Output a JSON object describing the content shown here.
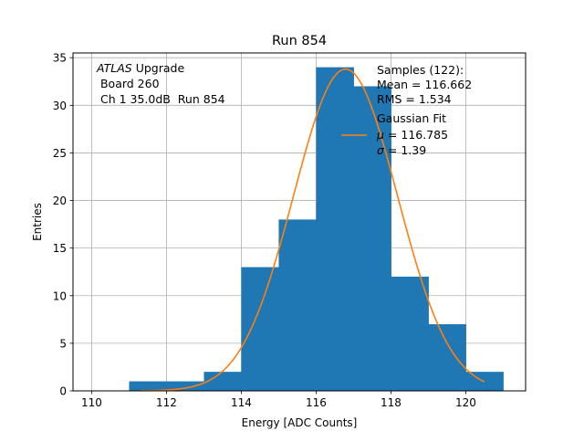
{
  "chart_data": {
    "type": "bar",
    "title": "Run 854",
    "xlabel": "Energy [ADC Counts]",
    "ylabel": "Entries",
    "xlim": [
      109.5,
      121.6
    ],
    "ylim": [
      0,
      35.5
    ],
    "grid": true,
    "xticks": [
      110,
      112,
      114,
      116,
      118,
      120
    ],
    "yticks": [
      0,
      5,
      10,
      15,
      20,
      25,
      30,
      35
    ],
    "bar_color": "#1f77b4",
    "fit_color": "#ff7f0e",
    "bins": [
      {
        "x0": 111,
        "x1": 112,
        "count": 1
      },
      {
        "x0": 112,
        "x1": 113,
        "count": 1
      },
      {
        "x0": 113,
        "x1": 114,
        "count": 2
      },
      {
        "x0": 114,
        "x1": 115,
        "count": 13
      },
      {
        "x0": 115,
        "x1": 116,
        "count": 18
      },
      {
        "x0": 116,
        "x1": 117,
        "count": 34
      },
      {
        "x0": 117,
        "x1": 118,
        "count": 32
      },
      {
        "x0": 118,
        "x1": 119,
        "count": 12
      },
      {
        "x0": 119,
        "x1": 120,
        "count": 7
      },
      {
        "x0": 120,
        "x1": 121,
        "count": 2
      }
    ],
    "fit": {
      "mu": 116.785,
      "sigma": 1.39,
      "amplitude": 33.8,
      "x_range": [
        111.3,
        120.5
      ]
    },
    "annotation": {
      "line1_italic": "ATLAS",
      "line1_rest": " Upgrade",
      "line2": " Board 260",
      "line3": " Ch 1 35.0dB  Run 854"
    },
    "stats": {
      "line1": "Samples (122):",
      "line2": "Mean = 116.662",
      "line3": "RMS = 1.534"
    },
    "legend": {
      "label": "Gaussian Fit",
      "mu_symbol": "μ",
      "mu_text": " = 116.785",
      "sigma_symbol": "σ",
      "sigma_text": " = 1.39"
    }
  }
}
